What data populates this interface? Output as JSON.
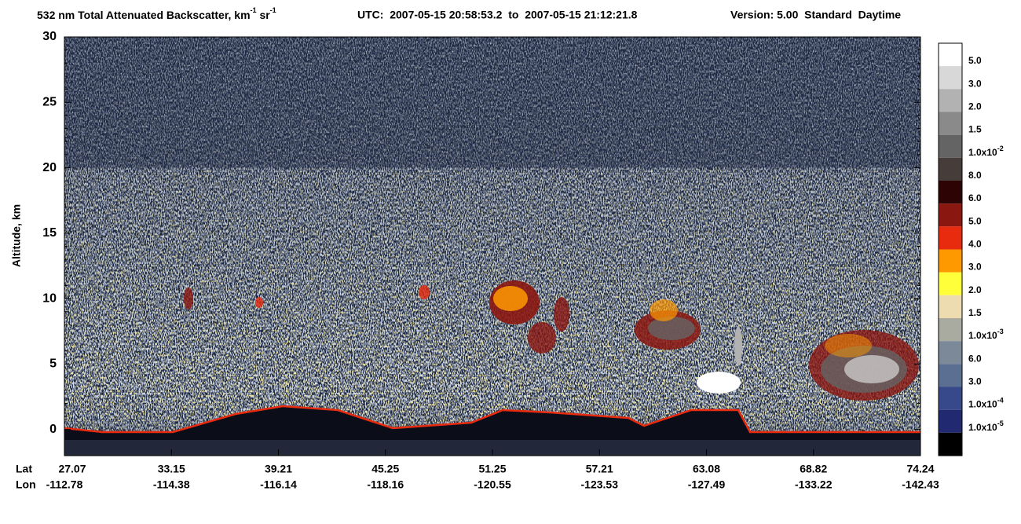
{
  "chart_data": {
    "type": "curtain",
    "title": {
      "main": "532 nm Total Attenuated Backscatter, km",
      "sup1": "-1",
      "mid": " sr",
      "sup2": "-1"
    },
    "utc": "UTC:  2007-05-15 20:58:53.2  to  2007-05-15 21:12:21.8",
    "version": "Version: 5.00  Standard  Daytime",
    "ylabel": "Altitude, km",
    "ylim": [
      -2,
      30
    ],
    "yticks": [
      0,
      5,
      10,
      15,
      20,
      25,
      30
    ],
    "lat_title": "Lat",
    "lon_title": "Lon",
    "lat": [
      "27.07",
      "33.15",
      "39.21",
      "45.25",
      "51.25",
      "57.21",
      "63.08",
      "68.82",
      "74.24"
    ],
    "lon": [
      "-112.78",
      "-114.38",
      "-116.14",
      "-118.16",
      "-120.55",
      "-123.53",
      "-127.49",
      "-133.22",
      "-142.43"
    ],
    "colorbar": {
      "colors": [
        "#ffffff",
        "#d8d8d8",
        "#b2b2b2",
        "#8a8a8a",
        "#646464",
        "#463c3a",
        "#2d0303",
        "#8b1711",
        "#e82a0e",
        "#ff9900",
        "#ffff3a",
        "#ecdcaf",
        "#a9aba0",
        "#7b8999",
        "#5b6f92",
        "#37498a",
        "#212a70",
        "#000000"
      ],
      "labels": [
        {
          "text": "5.0"
        },
        {
          "text": "3.0"
        },
        {
          "text": "2.0"
        },
        {
          "text": "1.5"
        },
        {
          "text": "1.0x10",
          "exp": "-2"
        },
        {
          "text": "8.0"
        },
        {
          "text": "6.0"
        },
        {
          "text": "5.0"
        },
        {
          "text": "4.0"
        },
        {
          "text": "3.0"
        },
        {
          "text": "2.0"
        },
        {
          "text": "1.5"
        },
        {
          "text": "1.0x10",
          "exp": "-3"
        },
        {
          "text": "6.0"
        },
        {
          "text": "3.0"
        },
        {
          "text": "1.0x10",
          "exp": "-4"
        },
        {
          "text": "1.0x10",
          "exp": "-5"
        }
      ]
    }
  }
}
